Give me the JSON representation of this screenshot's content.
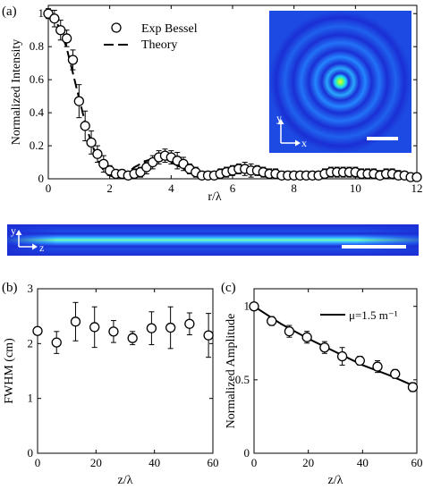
{
  "panel_labels": {
    "a": "(a)",
    "b": "(b)",
    "c": "(c)"
  },
  "inset_axes": {
    "y": "y",
    "x": "x",
    "z": "z"
  },
  "chart_data": [
    {
      "id": "a",
      "type": "scatter",
      "xlabel": "r/λ",
      "ylabel": "Normalized Intensity",
      "xlim": [
        0,
        12
      ],
      "ylim": [
        0,
        1.05
      ],
      "xticks": [
        "0",
        "2",
        "4",
        "6",
        "8",
        "10",
        "12"
      ],
      "yticks": [
        "0",
        "0.2",
        "0.4",
        "0.6",
        "0.8",
        "1"
      ],
      "legend": {
        "placement": "top-center",
        "entries": [
          "Exp Bessel",
          "Theory"
        ]
      },
      "series": [
        {
          "name": "Exp Bessel",
          "style": "open-circle-errorbar",
          "x": [
            0,
            0.2,
            0.4,
            0.6,
            0.8,
            1.0,
            1.2,
            1.4,
            1.6,
            1.8,
            2.0,
            2.2,
            2.4,
            2.6,
            2.8,
            3.0,
            3.2,
            3.4,
            3.6,
            3.8,
            4.0,
            4.2,
            4.4,
            4.6,
            4.8,
            5.0,
            5.2,
            5.4,
            5.6,
            5.8,
            6.0,
            6.2,
            6.4,
            6.6,
            6.8,
            7.0,
            7.2,
            7.4,
            7.6,
            7.8,
            8.0,
            8.2,
            8.4,
            8.6,
            8.8,
            9.0,
            9.2,
            9.4,
            9.6,
            9.8,
            10.0,
            10.2,
            10.4,
            10.6,
            10.8,
            11.0,
            11.2,
            11.4,
            11.6,
            11.8,
            12.0
          ],
          "y": [
            1.0,
            0.97,
            0.9,
            0.85,
            0.72,
            0.47,
            0.32,
            0.22,
            0.15,
            0.09,
            0.05,
            0.03,
            0.03,
            0.02,
            0.03,
            0.04,
            0.07,
            0.1,
            0.13,
            0.14,
            0.13,
            0.11,
            0.09,
            0.06,
            0.04,
            0.02,
            0.02,
            0.02,
            0.03,
            0.04,
            0.05,
            0.06,
            0.06,
            0.05,
            0.05,
            0.04,
            0.03,
            0.03,
            0.02,
            0.02,
            0.02,
            0.02,
            0.02,
            0.02,
            0.02,
            0.03,
            0.04,
            0.04,
            0.04,
            0.04,
            0.04,
            0.03,
            0.03,
            0.03,
            0.02,
            0.03,
            0.03,
            0.02,
            0.02,
            0.01,
            0.01
          ],
          "err": [
            0.03,
            0.05,
            0.06,
            0.05,
            0.06,
            0.1,
            0.09,
            0.07,
            0.05,
            0.05,
            0.03,
            0.02,
            0.02,
            0.02,
            0.03,
            0.03,
            0.04,
            0.04,
            0.04,
            0.04,
            0.04,
            0.05,
            0.04,
            0.03,
            0.03,
            0.02,
            0.02,
            0.02,
            0.03,
            0.03,
            0.03,
            0.03,
            0.04,
            0.04,
            0.03,
            0.03,
            0.03,
            0.03,
            0.02,
            0.02,
            0.02,
            0.02,
            0.02,
            0.02,
            0.02,
            0.03,
            0.03,
            0.03,
            0.03,
            0.03,
            0.03,
            0.03,
            0.03,
            0.03,
            0.03,
            0.03,
            0.03,
            0.03,
            0.02,
            0.02,
            0.02
          ]
        },
        {
          "name": "Theory",
          "style": "dashed-line",
          "x": [
            0,
            0.2,
            0.4,
            0.6,
            0.8,
            1.0,
            1.2,
            1.4,
            1.6,
            1.8,
            2.0,
            2.2,
            2.4,
            2.6,
            2.8,
            3.0,
            3.2,
            3.4,
            3.6,
            3.8,
            4.0,
            4.2,
            4.4,
            4.6,
            4.8,
            5.0,
            5.2,
            5.4,
            5.6,
            5.8,
            6.0,
            6.2,
            6.4,
            6.6,
            6.8,
            7.0,
            7.2,
            7.4,
            7.6,
            7.8,
            8.0,
            8.2,
            8.4,
            8.6,
            8.8,
            9.0,
            9.2,
            9.4,
            9.6,
            9.8,
            10.0,
            10.2,
            10.4,
            10.6,
            10.8,
            11.0,
            11.2,
            11.4,
            11.6,
            11.8,
            12.0
          ],
          "y": [
            1.0,
            0.97,
            0.9,
            0.79,
            0.64,
            0.49,
            0.34,
            0.22,
            0.12,
            0.05,
            0.02,
            0.01,
            0.02,
            0.04,
            0.07,
            0.09,
            0.11,
            0.12,
            0.12,
            0.12,
            0.1,
            0.08,
            0.06,
            0.04,
            0.02,
            0.01,
            0.01,
            0.01,
            0.02,
            0.03,
            0.04,
            0.05,
            0.06,
            0.06,
            0.05,
            0.05,
            0.04,
            0.03,
            0.02,
            0.01,
            0.01,
            0.01,
            0.01,
            0.01,
            0.02,
            0.03,
            0.03,
            0.04,
            0.04,
            0.04,
            0.03,
            0.03,
            0.02,
            0.01,
            0.01,
            0.01,
            0.0,
            0.01,
            0.01,
            0.02,
            0.02
          ]
        }
      ]
    },
    {
      "id": "b",
      "type": "scatter",
      "xlabel": "z/λ",
      "ylabel": "FWHM (cm)",
      "xlim": [
        0,
        60
      ],
      "ylim": [
        0,
        3
      ],
      "xticks": [
        "0",
        "20",
        "40",
        "60"
      ],
      "yticks": [
        "0",
        "1",
        "2",
        "3"
      ],
      "series": [
        {
          "style": "open-circle-errorbar",
          "x": [
            0,
            6.5,
            13,
            19.5,
            26,
            32.5,
            39,
            45.5,
            52,
            58.5
          ],
          "y": [
            2.23,
            2.02,
            2.4,
            2.3,
            2.22,
            2.1,
            2.28,
            2.29,
            2.36,
            2.15
          ],
          "err": [
            0.02,
            0.2,
            0.35,
            0.37,
            0.2,
            0.12,
            0.3,
            0.38,
            0.2,
            0.4
          ]
        }
      ]
    },
    {
      "id": "c",
      "type": "scatter",
      "xlabel": "z/λ",
      "ylabel": "Normalized Amplitude",
      "xlim": [
        0,
        60
      ],
      "ylim": [
        0,
        1.12
      ],
      "xticks": [
        "0",
        "20",
        "40",
        "60"
      ],
      "yticks": [
        "0",
        "0.5",
        "1"
      ],
      "legend": {
        "placement": "top-right",
        "entries": [
          "μ=1.5 m⁻¹"
        ]
      },
      "series": [
        {
          "style": "open-circle-errorbar",
          "x": [
            0,
            6.5,
            13,
            19.5,
            26,
            32.5,
            39,
            45.5,
            52,
            58.5
          ],
          "y": [
            1.0,
            0.9,
            0.83,
            0.79,
            0.72,
            0.66,
            0.63,
            0.59,
            0.54,
            0.45
          ],
          "err": [
            0.01,
            0.03,
            0.04,
            0.04,
            0.04,
            0.06,
            0.03,
            0.04,
            0.03,
            0.03
          ]
        },
        {
          "name": "μ=1.5 m⁻¹",
          "style": "solid-line",
          "x": [
            0,
            10,
            20,
            30,
            40,
            50,
            60
          ],
          "y": [
            1.0,
            0.88,
            0.78,
            0.69,
            0.6,
            0.53,
            0.45
          ]
        }
      ]
    }
  ],
  "colors": {
    "field_bg": "#1c2fd6",
    "ring_bright": "#21c0ff",
    "core": "#ffe93a",
    "scale_bar": "#ffffff"
  }
}
